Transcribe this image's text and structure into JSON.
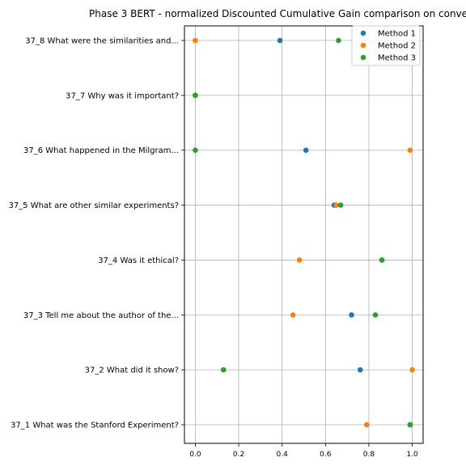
{
  "chart_data": {
    "type": "scatter",
    "title": "Phase 3 BERT - normalized Discounted Cumulative Gain comparison on conve",
    "xlabel": "",
    "ylabel": "",
    "xlim": [
      -0.05,
      1.05
    ],
    "xticks": [
      0.0,
      0.2,
      0.4,
      0.6,
      0.8,
      1.0
    ],
    "xtick_labels": [
      "0.0",
      "0.2",
      "0.4",
      "0.6",
      "0.8",
      "1.0"
    ],
    "grid": true,
    "legend_position": "top-right",
    "categories": [
      "37_8 What were the similarities and...",
      "37_7 Why was it important?",
      "37_6 What happened in the Milgram...",
      "37_5 What are other similar experiments?",
      "37_4 Was it ethical?",
      "37_3 Tell me about the author of the...",
      "37_2 What did it show?",
      "37_1 What was the Stanford Experiment?"
    ],
    "series": [
      {
        "name": "Method 1",
        "color": "#1f77b4",
        "values": [
          0.39,
          0.0,
          0.51,
          0.64,
          0.86,
          0.72,
          0.76,
          0.99
        ]
      },
      {
        "name": "Method 2",
        "color": "#ff7f0e",
        "values": [
          0.0,
          0.0,
          0.99,
          0.65,
          0.48,
          0.45,
          1.0,
          0.79
        ]
      },
      {
        "name": "Method 3",
        "color": "#2ca02c",
        "values": [
          0.66,
          0.0,
          0.0,
          0.67,
          0.86,
          0.83,
          0.13,
          0.99
        ]
      }
    ]
  }
}
